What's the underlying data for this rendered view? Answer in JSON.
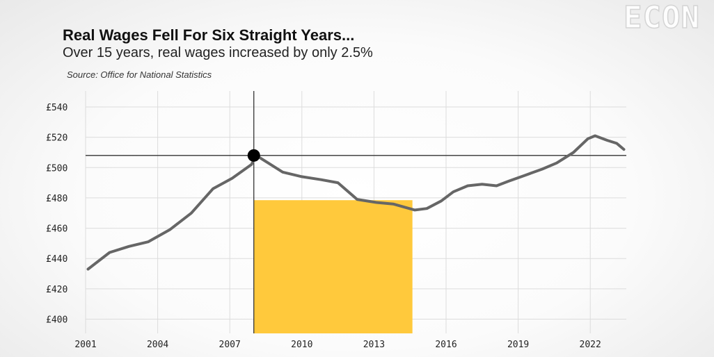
{
  "logo": {
    "text": "ECON"
  },
  "header": {
    "title": "Real Wages Fell For Six Straight Years...",
    "subtitle": "Over 15 years, real wages increased by only 2.5%",
    "source": "Source: Office for National Statistics"
  },
  "chart_data": {
    "type": "line",
    "title": "Real Wages Fell For Six Straight Years...",
    "subtitle": "Over 15 years, real wages increased by only 2.5%",
    "source": "Source: Office for National Statistics",
    "xlabel": "",
    "ylabel": "",
    "xlim": [
      2001,
      2023.5
    ],
    "ylim": [
      390,
      550
    ],
    "x_ticks": [
      2001,
      2004,
      2007,
      2010,
      2013,
      2016,
      2019,
      2022
    ],
    "x_tick_labels": [
      "2001",
      "2004",
      "2007",
      "2010",
      "2013",
      "2016",
      "2019",
      "2022"
    ],
    "y_ticks": [
      400,
      420,
      440,
      460,
      480,
      500,
      520,
      540
    ],
    "y_tick_labels": [
      "£400",
      "£420",
      "£440",
      "£460",
      "£480",
      "£500",
      "£520",
      "£540"
    ],
    "grid": true,
    "series": [
      {
        "color": "#666666",
        "x": [
          2001.1,
          2002.0,
          2002.8,
          2003.6,
          2004.5,
          2005.4,
          2006.3,
          2007.1,
          2007.9,
          2008.1,
          2008.6,
          2009.2,
          2010.0,
          2010.8,
          2011.5,
          2012.3,
          2013.1,
          2013.8,
          2014.7,
          2015.2,
          2015.8,
          2016.3,
          2016.9,
          2017.5,
          2018.1,
          2018.6,
          2019.3,
          2020.0,
          2020.6,
          2021.3,
          2021.9,
          2022.2,
          2022.7,
          2023.1,
          2023.4
        ],
        "values": [
          433,
          444,
          448,
          451,
          459,
          470,
          486,
          493,
          502,
          508,
          503,
          497,
          494,
          492,
          490,
          479,
          477,
          476,
          472,
          473,
          478,
          484,
          488,
          489,
          488,
          491,
          495,
          499,
          503,
          510,
          519,
          521,
          518,
          516,
          512
        ]
      }
    ],
    "annotations": {
      "crosshair": {
        "x": 2008.0,
        "y": 508.0
      },
      "highlight": {
        "x_start": 2008.0,
        "x_end": 2014.6,
        "y_top": 478.5,
        "color": "#ffc93c"
      }
    }
  }
}
